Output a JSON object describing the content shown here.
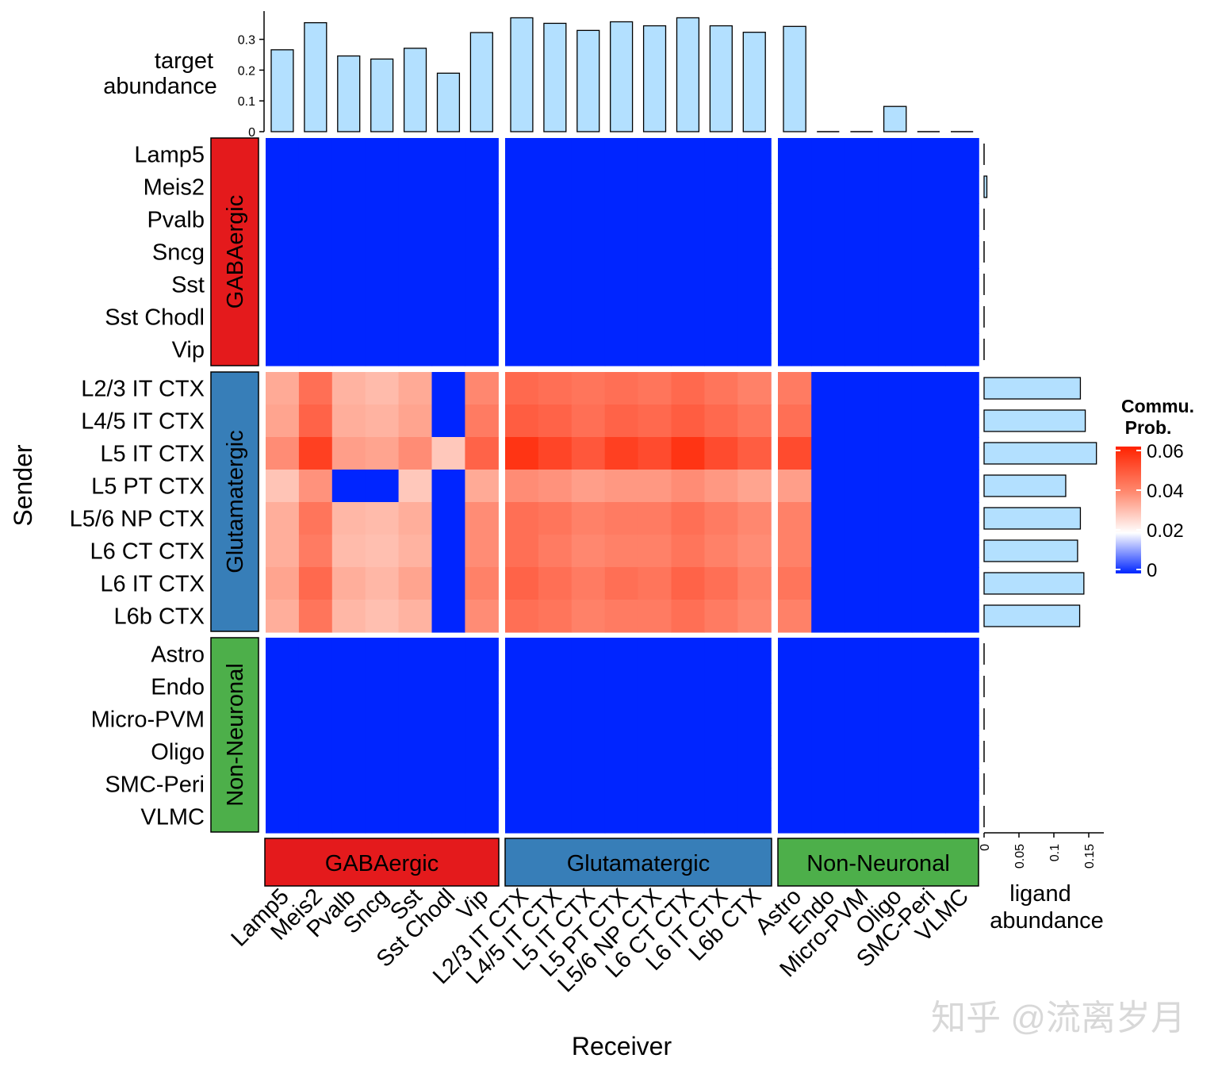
{
  "chart_data": {
    "type": "heatmap",
    "xlabel": "Receiver",
    "ylabel": "Sender",
    "legend": {
      "title_line1": "Commu.",
      "title_line2": "Prob.",
      "ticks": [
        "0",
        "0.02",
        "0.04",
        "0.06"
      ],
      "tick_values": [
        0,
        0.02,
        0.04,
        0.06
      ],
      "range": [
        0,
        0.063
      ],
      "placement": "right"
    },
    "top_bar": {
      "label_line1": "target",
      "label_line2": "abundance",
      "ticks": [
        "0",
        "0.1",
        "0.2",
        "0.3"
      ],
      "tick_values": [
        0,
        0.1,
        0.2,
        0.3
      ],
      "ylim": [
        0,
        0.4
      ]
    },
    "right_bar": {
      "label_line1": "ligand",
      "label_line2": "abundance",
      "ticks": [
        "0",
        "0.05",
        "0.1",
        "0.15"
      ],
      "tick_values": [
        0,
        0.05,
        0.1,
        0.15
      ],
      "xlim": [
        0,
        0.17
      ]
    },
    "groups": [
      {
        "name": "GABAergic",
        "color": "#E41A1C",
        "count": 7
      },
      {
        "name": "Glutamatergic",
        "color": "#377EB8",
        "count": 8
      },
      {
        "name": "Non-Neuronal",
        "color": "#4DAF4A",
        "count": 6
      }
    ],
    "rows": [
      "Lamp5",
      "Meis2",
      "Pvalb",
      "Sncg",
      "Sst",
      "Sst Chodl",
      "Vip",
      "L2/3 IT CTX",
      "L4/5 IT CTX",
      "L5 IT CTX",
      "L5 PT CTX",
      "L5/6 NP CTX",
      "L6 CT CTX",
      "L6 IT CTX",
      "L6b CTX",
      "Astro",
      "Endo",
      "Micro-PVM",
      "Oligo",
      "SMC-Peri",
      "VLMC"
    ],
    "columns": [
      "Lamp5",
      "Meis2",
      "Pvalb",
      "Sncg",
      "Sst",
      "Sst Chodl",
      "Vip",
      "L2/3 IT CTX",
      "L4/5 IT CTX",
      "L5 IT CTX",
      "L5 PT CTX",
      "L5/6 NP CTX",
      "L6 CT CTX",
      "L6 IT CTX",
      "L6b CTX",
      "Astro",
      "Endo",
      "Micro-PVM",
      "Oligo",
      "SMC-Peri",
      "VLMC"
    ],
    "target_abundance": [
      0.266,
      0.354,
      0.246,
      0.236,
      0.271,
      0.19,
      0.322,
      0.37,
      0.352,
      0.329,
      0.357,
      0.344,
      0.37,
      0.344,
      0.323,
      0.342,
      0.0,
      0.0,
      0.082,
      0.0,
      0.0
    ],
    "ligand_abundance": [
      0.0,
      0.004,
      0.0,
      0.0,
      0.0,
      0.0,
      0.0,
      0.138,
      0.145,
      0.161,
      0.117,
      0.138,
      0.134,
      0.143,
      0.137,
      0.0,
      0.0,
      0.0,
      0.0,
      0.0,
      0.0
    ],
    "values": [
      [
        0,
        0,
        0,
        0,
        0,
        0,
        0,
        0,
        0,
        0,
        0,
        0,
        0,
        0,
        0,
        0,
        0,
        0,
        0,
        0,
        0
      ],
      [
        0,
        0,
        0,
        0,
        0,
        0,
        0,
        0,
        0,
        0,
        0,
        0,
        0,
        0,
        0,
        0,
        0,
        0,
        0,
        0,
        0
      ],
      [
        0,
        0,
        0,
        0,
        0,
        0,
        0,
        0,
        0,
        0,
        0,
        0,
        0,
        0,
        0,
        0,
        0,
        0,
        0,
        0,
        0
      ],
      [
        0,
        0,
        0,
        0,
        0,
        0,
        0,
        0,
        0,
        0,
        0,
        0,
        0,
        0,
        0,
        0,
        0,
        0,
        0,
        0,
        0
      ],
      [
        0,
        0,
        0,
        0,
        0,
        0,
        0,
        0,
        0,
        0,
        0,
        0,
        0,
        0,
        0,
        0,
        0,
        0,
        0,
        0,
        0
      ],
      [
        0,
        0,
        0,
        0,
        0,
        0,
        0,
        0,
        0,
        0,
        0,
        0,
        0,
        0,
        0,
        0,
        0,
        0,
        0,
        0,
        0
      ],
      [
        0,
        0,
        0,
        0,
        0,
        0,
        0,
        0,
        0,
        0,
        0,
        0,
        0,
        0,
        0,
        0,
        0,
        0,
        0,
        0,
        0
      ],
      [
        0.04,
        0.05,
        0.038,
        0.036,
        0.04,
        0,
        0.046,
        0.051,
        0.05,
        0.049,
        0.05,
        0.049,
        0.051,
        0.049,
        0.047,
        0.048,
        0,
        0,
        0,
        0,
        0
      ],
      [
        0.041,
        0.052,
        0.039,
        0.038,
        0.041,
        0,
        0.048,
        0.053,
        0.052,
        0.05,
        0.052,
        0.051,
        0.053,
        0.051,
        0.049,
        0.05,
        0,
        0,
        0,
        0,
        0
      ],
      [
        0.045,
        0.058,
        0.042,
        0.041,
        0.045,
        0.033,
        0.052,
        0.06,
        0.057,
        0.054,
        0.058,
        0.056,
        0.06,
        0.056,
        0.053,
        0.056,
        0,
        0,
        0,
        0,
        0
      ],
      [
        0.034,
        0.044,
        0,
        0,
        0.033,
        0,
        0.04,
        0.045,
        0.044,
        0.042,
        0.043,
        0.043,
        0.045,
        0.043,
        0.041,
        0.042,
        0,
        0,
        0,
        0,
        0
      ],
      [
        0.039,
        0.049,
        0.037,
        0.036,
        0.039,
        0,
        0.045,
        0.05,
        0.049,
        0.047,
        0.048,
        0.048,
        0.05,
        0.048,
        0.046,
        0.047,
        0,
        0,
        0,
        0,
        0
      ],
      [
        0.039,
        0.048,
        0.036,
        0.035,
        0.038,
        0,
        0.045,
        0.05,
        0.048,
        0.046,
        0.047,
        0.047,
        0.049,
        0.047,
        0.045,
        0.047,
        0,
        0,
        0,
        0,
        0
      ],
      [
        0.041,
        0.051,
        0.039,
        0.037,
        0.041,
        0,
        0.047,
        0.052,
        0.05,
        0.048,
        0.05,
        0.049,
        0.052,
        0.05,
        0.047,
        0.049,
        0,
        0,
        0,
        0,
        0
      ],
      [
        0.039,
        0.049,
        0.037,
        0.035,
        0.038,
        0,
        0.045,
        0.05,
        0.049,
        0.047,
        0.048,
        0.048,
        0.05,
        0.048,
        0.046,
        0.047,
        0,
        0,
        0,
        0,
        0
      ],
      [
        0,
        0,
        0,
        0,
        0,
        0,
        0,
        0,
        0,
        0,
        0,
        0,
        0,
        0,
        0,
        0,
        0,
        0,
        0,
        0,
        0
      ],
      [
        0,
        0,
        0,
        0,
        0,
        0,
        0,
        0,
        0,
        0,
        0,
        0,
        0,
        0,
        0,
        0,
        0,
        0,
        0,
        0,
        0
      ],
      [
        0,
        0,
        0,
        0,
        0,
        0,
        0,
        0,
        0,
        0,
        0,
        0,
        0,
        0,
        0,
        0,
        0,
        0,
        0,
        0,
        0
      ],
      [
        0,
        0,
        0,
        0,
        0,
        0,
        0,
        0,
        0,
        0,
        0,
        0,
        0,
        0,
        0,
        0,
        0,
        0,
        0,
        0,
        0
      ],
      [
        0,
        0,
        0,
        0,
        0,
        0,
        0,
        0,
        0,
        0,
        0,
        0,
        0,
        0,
        0,
        0,
        0,
        0,
        0,
        0,
        0
      ],
      [
        0,
        0,
        0,
        0,
        0,
        0,
        0,
        0,
        0,
        0,
        0,
        0,
        0,
        0,
        0,
        0,
        0,
        0,
        0,
        0,
        0
      ]
    ],
    "colors": {
      "low": "#0025FF",
      "mid": "#FFFFFF",
      "high": "#FF2200",
      "bar_fill": "#B3E0FF"
    }
  },
  "watermark": "知乎 @流离岁月"
}
